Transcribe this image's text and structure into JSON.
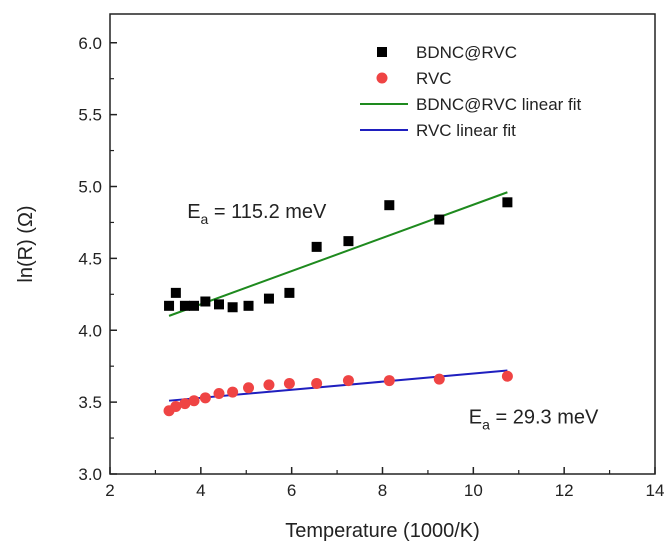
{
  "chart_data": {
    "type": "scatter",
    "xlabel": "Temperature (1000/K)",
    "ylabel": "ln(R) (Ω)",
    "xlim": [
      2,
      14
    ],
    "ylim": [
      3.0,
      6.2
    ],
    "xticks": [
      "2",
      "4",
      "6",
      "8",
      "10",
      "12",
      "14"
    ],
    "yticks": [
      "3.0",
      "3.5",
      "4.0",
      "4.5",
      "5.0",
      "5.5",
      "6.0"
    ],
    "grid": false,
    "legend_position": "top-right",
    "series": [
      {
        "name": "BDNC@RVC",
        "kind": "scatter",
        "marker": "square",
        "color": "#000000",
        "x": [
          3.3,
          3.45,
          3.65,
          3.85,
          4.1,
          4.4,
          4.7,
          5.05,
          5.5,
          5.95,
          6.55,
          7.25,
          8.15,
          9.25,
          10.75
        ],
        "y": [
          4.17,
          4.26,
          4.17,
          4.17,
          4.2,
          4.18,
          4.16,
          4.17,
          4.22,
          4.26,
          4.58,
          4.62,
          4.87,
          4.77,
          4.89
        ]
      },
      {
        "name": "RVC",
        "kind": "scatter",
        "marker": "circle",
        "color": "#ef4444",
        "x": [
          3.3,
          3.45,
          3.65,
          3.85,
          4.1,
          4.4,
          4.7,
          5.05,
          5.5,
          5.95,
          6.55,
          7.25,
          8.15,
          9.25,
          10.75
        ],
        "y": [
          3.44,
          3.47,
          3.49,
          3.51,
          3.53,
          3.56,
          3.57,
          3.6,
          3.62,
          3.63,
          3.63,
          3.65,
          3.65,
          3.66,
          3.68
        ]
      },
      {
        "name": "BDNC@RVC linear fit",
        "kind": "line",
        "color": "#1e8a1e",
        "x": [
          3.3,
          10.75
        ],
        "y": [
          4.1,
          4.96
        ]
      },
      {
        "name": "RVC linear fit",
        "kind": "line",
        "color": "#1f1fbf",
        "x": [
          3.3,
          10.75
        ],
        "y": [
          3.51,
          3.72
        ]
      }
    ],
    "annotations": [
      {
        "base": "E",
        "sub": "a",
        "rest": " = 115.2 meV",
        "x": 3.7,
        "y": 4.78
      },
      {
        "base": "E",
        "sub": "a",
        "rest": " = 29.3 meV",
        "x": 9.9,
        "y": 3.35
      }
    ]
  }
}
